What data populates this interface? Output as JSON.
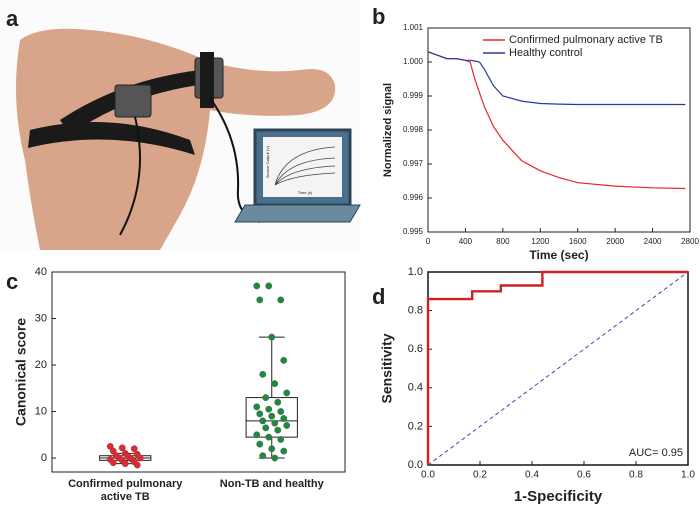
{
  "panel_labels": [
    "a",
    "b",
    "c",
    "d"
  ],
  "photo": {
    "screen_ylabel": "Sensor Output (V)",
    "screen_xlabel": "Time (s)"
  },
  "chart_data": [
    {
      "type": "line",
      "xlabel": "Time (sec)",
      "ylabel": "Normalized signal",
      "x": [
        0,
        100,
        200,
        300,
        400,
        450,
        500,
        550,
        600,
        700,
        800,
        1000,
        1200,
        1400,
        1600,
        2000,
        2400,
        2750
      ],
      "series": [
        {
          "name": "Confirmed pulmonary active TB",
          "color": "#e8262d",
          "values": [
            1.0003,
            1.0002,
            1.0001,
            1.0001,
            1.00005,
            1.0,
            0.9995,
            0.9991,
            0.9987,
            0.9981,
            0.9977,
            0.9971,
            0.9968,
            0.9966,
            0.99645,
            0.99635,
            0.9963,
            0.99628
          ]
        },
        {
          "name": "Healthy control",
          "color": "#2a3b9c",
          "values": [
            1.0003,
            1.0002,
            1.0001,
            1.0001,
            1.00005,
            1.00005,
            1.00003,
            1.0,
            0.9998,
            0.9993,
            0.999,
            0.99885,
            0.99878,
            0.99876,
            0.99875,
            0.99875,
            0.99875,
            0.99875
          ]
        }
      ],
      "xlim": [
        0,
        2800
      ],
      "xticks": [
        0,
        400,
        800,
        1200,
        1600,
        2000,
        2400,
        2800
      ],
      "ylim": [
        0.995,
        1.001
      ],
      "yticks": [
        0.995,
        0.996,
        0.997,
        0.998,
        0.999,
        {
          "value": 1,
          "label": "1.000"
        },
        1.001
      ],
      "legend": "top-right"
    },
    {
      "type": "box",
      "ylabel": "Canonical score",
      "categories": [
        "Confirmed pulmonary active TB",
        "Non-TB and healthy"
      ],
      "colors": [
        "#e8262d",
        "#1e8a3c"
      ],
      "boxes": [
        {
          "whisker_low": -1.2,
          "q1": -0.5,
          "median": 0,
          "q3": 0.5,
          "whisker_high": 1
        },
        {
          "whisker_low": 0,
          "q1": 4.5,
          "median": 8,
          "q3": 13,
          "whisker_high": 26
        }
      ],
      "points": [
        [
          2.5,
          2.2,
          2,
          1.5,
          1,
          0.8,
          0.5,
          0.3,
          0,
          0,
          -0.2,
          -0.3,
          -0.5,
          -0.8,
          -1,
          -1.2,
          -1.5
        ],
        [
          37,
          37,
          34,
          34,
          26,
          21,
          18,
          16,
          14,
          13,
          12,
          11,
          10.5,
          10,
          9.5,
          9,
          8.5,
          8,
          7.5,
          7,
          6.5,
          6,
          5,
          4.5,
          4,
          3,
          2,
          1.5,
          0.5,
          0
        ]
      ],
      "ylim": [
        -3,
        40
      ],
      "yticks": [
        0,
        10,
        20,
        30,
        40
      ]
    },
    {
      "type": "line",
      "xlabel": "1-Specificity",
      "ylabel": "Sensitivity",
      "x": [
        0,
        0,
        0.17,
        0.17,
        0.28,
        0.28,
        0.44,
        0.44,
        1
      ],
      "series": [
        {
          "name": "ROC",
          "color": "#d42020",
          "values": [
            0,
            0.86,
            0.86,
            0.9,
            0.9,
            0.93,
            0.93,
            1,
            1
          ]
        }
      ],
      "annotation": "AUC= 0.95",
      "xlim": [
        0,
        1
      ],
      "xticks": [
        {
          "value": 0,
          "label": "0.0"
        },
        0.2,
        0.4,
        0.6,
        0.8,
        {
          "value": 1,
          "label": "1.0"
        }
      ],
      "ylim": [
        0,
        1
      ],
      "yticks": [
        {
          "value": 0,
          "label": "0.0"
        },
        0.2,
        0.4,
        0.6,
        0.8,
        {
          "value": 1,
          "label": "1.0"
        }
      ]
    }
  ]
}
